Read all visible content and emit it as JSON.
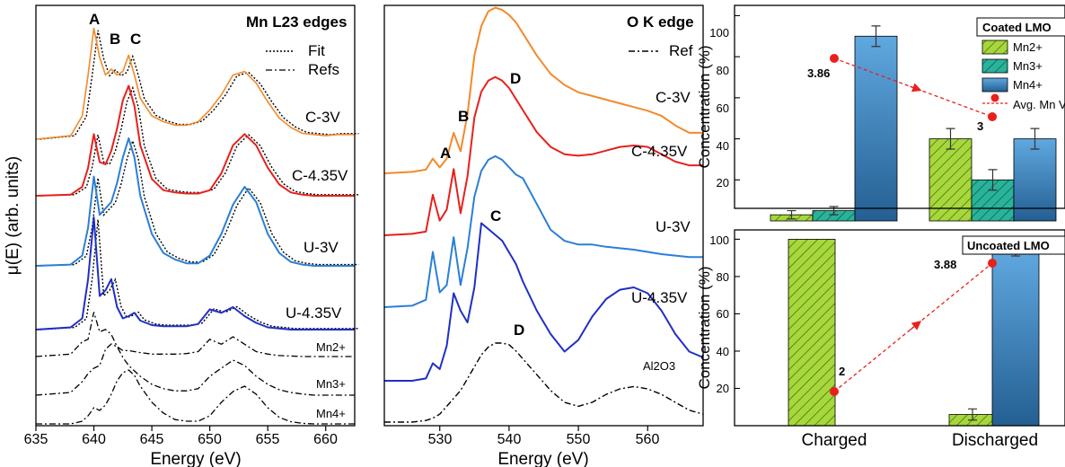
{
  "chart_data": [
    {
      "type": "line",
      "xlabel": "Energy (eV)",
      "ylabel": "μ(E) (arb. units)",
      "xlim": [
        635,
        662.5
      ],
      "x_ticks": [
        "635",
        "640",
        "645",
        "650",
        "655",
        "660"
      ],
      "title": "Mn L23 edges",
      "legend": {
        "position": "top-right",
        "fit": "Fit",
        "refs": "Refs"
      },
      "peak_labels": [
        "A",
        "B",
        "C"
      ],
      "colors": {
        "C-3V": "#f28a2a",
        "C-4.35V": "#e8201c",
        "U-3V": "#2a7fd6",
        "U-4.35V": "#1f2fc6",
        "fit": "#000000",
        "refs": "#000000"
      },
      "series": [
        {
          "name": "C-3V",
          "x": [
            635,
            638,
            639,
            639.5,
            640,
            640.5,
            641,
            641.5,
            642,
            642.5,
            643,
            643.5,
            644,
            645,
            646,
            647,
            648,
            649,
            650,
            651,
            652,
            653,
            654,
            655,
            656,
            657,
            658,
            659,
            660,
            661,
            662.5
          ],
          "y": [
            0.0,
            0.03,
            0.2,
            0.55,
            0.95,
            0.7,
            0.55,
            0.6,
            0.55,
            0.58,
            0.72,
            0.55,
            0.35,
            0.2,
            0.15,
            0.12,
            0.12,
            0.15,
            0.25,
            0.38,
            0.55,
            0.58,
            0.48,
            0.32,
            0.18,
            0.1,
            0.05,
            0.04,
            0.03,
            0.04,
            0.04
          ]
        },
        {
          "name": "C-4.35V",
          "x": [
            635,
            638,
            639,
            639.5,
            640,
            640.5,
            641,
            641.5,
            642,
            642.5,
            643,
            643.5,
            644,
            645,
            646,
            647,
            648,
            649,
            650,
            651,
            652,
            653,
            654,
            655,
            656,
            657,
            658,
            659,
            660,
            661,
            662.5
          ],
          "y": [
            0.0,
            0.01,
            0.08,
            0.25,
            0.55,
            0.3,
            0.28,
            0.4,
            0.6,
            0.85,
            0.98,
            0.8,
            0.45,
            0.15,
            0.05,
            0.03,
            0.02,
            0.02,
            0.05,
            0.2,
            0.45,
            0.55,
            0.45,
            0.25,
            0.1,
            0.03,
            0.01,
            0.0,
            0.0,
            0.0,
            0.0
          ]
        },
        {
          "name": "U-3V",
          "x": [
            635,
            638,
            639,
            639.5,
            640,
            640.5,
            641,
            641.5,
            642,
            642.5,
            643,
            643.5,
            644,
            645,
            646,
            647,
            648,
            649,
            650,
            651,
            652,
            653,
            654,
            655,
            656,
            657,
            658,
            659,
            660,
            661,
            662.5
          ],
          "y": [
            0.0,
            0.01,
            0.08,
            0.3,
            0.7,
            0.4,
            0.45,
            0.5,
            0.65,
            0.85,
            1.0,
            0.85,
            0.55,
            0.25,
            0.1,
            0.05,
            0.02,
            0.02,
            0.08,
            0.25,
            0.48,
            0.62,
            0.5,
            0.25,
            0.1,
            0.03,
            0.01,
            0.0,
            0.0,
            0.0,
            0.0
          ]
        },
        {
          "name": "U-4.35V",
          "x": [
            635,
            638,
            639,
            639.5,
            640,
            640.5,
            641,
            641.5,
            642,
            642.5,
            643,
            643.5,
            644,
            645,
            646,
            647,
            648,
            649,
            650,
            651,
            652,
            653,
            654,
            655,
            656,
            657,
            658,
            659,
            660,
            661,
            662.5
          ],
          "y": [
            0.0,
            0.02,
            0.1,
            0.45,
            1.0,
            0.3,
            0.35,
            0.45,
            0.2,
            0.1,
            0.12,
            0.15,
            0.08,
            0.04,
            0.03,
            0.03,
            0.03,
            0.05,
            0.18,
            0.15,
            0.2,
            0.12,
            0.06,
            0.02,
            0.01,
            0.0,
            0.0,
            0.0,
            0.0,
            0.0,
            0.0
          ]
        },
        {
          "name": "Mn2+",
          "x": [
            635,
            638,
            639,
            639.5,
            640,
            640.5,
            641,
            641.5,
            642,
            642.5,
            643,
            643.5,
            644,
            645,
            646,
            647,
            648,
            649,
            650,
            651,
            652,
            653,
            654,
            655,
            656,
            657,
            658,
            659,
            660,
            661,
            662.5
          ],
          "y": [
            0.0,
            0.05,
            0.3,
            0.35,
            0.9,
            0.5,
            0.55,
            0.45,
            0.2,
            0.12,
            0.12,
            0.1,
            0.08,
            0.05,
            0.05,
            0.05,
            0.06,
            0.1,
            0.35,
            0.25,
            0.4,
            0.25,
            0.1,
            0.05,
            0.02,
            0.01,
            0.0,
            0.0,
            0.0,
            0.0,
            0.0
          ]
        },
        {
          "name": "Mn3+",
          "x": [
            635,
            638,
            639,
            639.5,
            640,
            640.5,
            641,
            641.5,
            642,
            642.5,
            643,
            643.5,
            644,
            645,
            646,
            647,
            648,
            649,
            650,
            651,
            652,
            653,
            654,
            655,
            656,
            657,
            658,
            659,
            660,
            661,
            662.5
          ],
          "y": [
            0.0,
            0.05,
            0.25,
            0.4,
            0.5,
            0.55,
            0.85,
            0.95,
            0.9,
            0.7,
            0.55,
            0.45,
            0.35,
            0.2,
            0.12,
            0.08,
            0.08,
            0.12,
            0.35,
            0.5,
            0.65,
            0.55,
            0.35,
            0.2,
            0.1,
            0.05,
            0.02,
            0.0,
            0.0,
            0.0,
            0.0
          ]
        },
        {
          "name": "Mn4+",
          "x": [
            635,
            638,
            639,
            639.5,
            640,
            640.5,
            641,
            641.5,
            642,
            642.5,
            643,
            643.5,
            644,
            645,
            646,
            647,
            648,
            649,
            650,
            651,
            652,
            653,
            654,
            655,
            656,
            657,
            658,
            659,
            660,
            661,
            662.5
          ],
          "y": [
            0.0,
            0.0,
            0.05,
            0.15,
            0.3,
            0.25,
            0.35,
            0.55,
            0.8,
            0.95,
            1.0,
            0.9,
            0.7,
            0.4,
            0.2,
            0.08,
            0.05,
            0.05,
            0.15,
            0.4,
            0.6,
            0.7,
            0.55,
            0.3,
            0.12,
            0.04,
            0.01,
            0.0,
            0.0,
            0.0,
            0.0
          ]
        }
      ],
      "trace_labels": [
        "C-3V",
        "C-4.35V",
        "U-3V",
        "U-4.35V",
        "Mn2+",
        "Mn3+",
        "Mn4+"
      ]
    },
    {
      "type": "line",
      "xlabel": "Energy (eV)",
      "xlim": [
        522,
        568
      ],
      "x_ticks": [
        "530",
        "540",
        "550",
        "560"
      ],
      "title": "O K edge",
      "legend": {
        "position": "top-right",
        "ref": "Ref"
      },
      "peak_labels": [
        "A",
        "B",
        "C",
        "D",
        "D"
      ],
      "colors": {
        "C-3V": "#f28a2a",
        "C-4.35V": "#e8201c",
        "U-3V": "#2a7fd6",
        "U-4.35V": "#1f2fc6",
        "ref": "#000000"
      },
      "series": [
        {
          "name": "C-3V",
          "x": [
            522,
            526,
            528,
            529,
            530,
            531,
            532,
            533,
            534,
            535,
            536,
            537,
            538,
            539,
            540,
            541,
            542,
            544,
            546,
            548,
            550,
            552,
            554,
            556,
            558,
            560,
            562,
            564,
            566,
            568
          ],
          "y": [
            0.0,
            0.02,
            0.05,
            0.2,
            0.08,
            0.2,
            0.55,
            0.3,
            0.8,
            1.6,
            2.0,
            2.2,
            2.25,
            2.22,
            2.15,
            2.05,
            1.9,
            1.6,
            1.35,
            1.2,
            1.1,
            1.05,
            1.0,
            0.95,
            0.9,
            0.85,
            0.78,
            0.65,
            0.55,
            0.55
          ]
        },
        {
          "name": "C-4.35V",
          "x": [
            522,
            526,
            528,
            529,
            530,
            531,
            532,
            533,
            534,
            535,
            536,
            537,
            538,
            539,
            540,
            541,
            542,
            544,
            546,
            548,
            550,
            552,
            554,
            556,
            558,
            560,
            562,
            564,
            566,
            568
          ],
          "y": [
            0.0,
            0.02,
            0.05,
            0.55,
            0.2,
            0.35,
            0.9,
            0.3,
            0.8,
            1.6,
            1.95,
            2.1,
            2.15,
            2.1,
            2.0,
            1.85,
            1.7,
            1.4,
            1.2,
            1.1,
            1.08,
            1.1,
            1.15,
            1.2,
            1.22,
            1.2,
            1.1,
            1.0,
            0.95,
            0.95
          ]
        },
        {
          "name": "U-3V",
          "x": [
            522,
            526,
            528,
            529,
            530,
            531,
            532,
            533,
            534,
            535,
            536,
            537,
            538,
            539,
            540,
            541,
            542,
            544,
            546,
            548,
            550,
            552,
            554,
            556,
            558,
            560,
            562,
            564,
            566,
            568
          ],
          "y": [
            0.0,
            0.02,
            0.1,
            0.75,
            0.2,
            0.3,
            0.95,
            0.3,
            0.8,
            1.5,
            1.85,
            2.0,
            2.05,
            2.0,
            1.9,
            1.8,
            1.75,
            1.4,
            1.05,
            0.9,
            0.85,
            0.85,
            0.82,
            0.8,
            0.78,
            0.75,
            0.72,
            0.7,
            0.68,
            0.68
          ]
        },
        {
          "name": "U-4.35V",
          "x": [
            522,
            526,
            528,
            529,
            530,
            531,
            532,
            533,
            534,
            535,
            536,
            537,
            538,
            539,
            540,
            541,
            542,
            544,
            546,
            548,
            550,
            552,
            554,
            556,
            558,
            560,
            562,
            564,
            566,
            568
          ],
          "y": [
            0.0,
            0.0,
            0.02,
            0.15,
            0.1,
            0.3,
            0.75,
            0.6,
            0.5,
            0.8,
            1.35,
            1.3,
            1.25,
            1.2,
            1.1,
            1.0,
            0.85,
            0.6,
            0.4,
            0.25,
            0.35,
            0.55,
            0.7,
            0.78,
            0.8,
            0.75,
            0.6,
            0.4,
            0.25,
            0.2
          ]
        },
        {
          "name": "Al2O3",
          "x": [
            522,
            526,
            528,
            529,
            530,
            531,
            532,
            533,
            534,
            535,
            536,
            537,
            538,
            539,
            540,
            541,
            542,
            544,
            546,
            548,
            550,
            552,
            554,
            556,
            558,
            560,
            562,
            564,
            566,
            568
          ],
          "y": [
            0.0,
            0.0,
            0.02,
            0.05,
            0.1,
            0.2,
            0.3,
            0.4,
            0.55,
            0.7,
            0.85,
            0.95,
            1.0,
            1.0,
            0.98,
            0.9,
            0.8,
            0.6,
            0.4,
            0.25,
            0.2,
            0.25,
            0.35,
            0.42,
            0.45,
            0.42,
            0.35,
            0.25,
            0.15,
            0.1
          ]
        }
      ],
      "trace_labels": [
        "C-3V",
        "C-4.35V",
        "U-3V",
        "U-4.35V",
        "Al2O3"
      ]
    },
    {
      "type": "bar",
      "title": "Coated LMO",
      "ylabel": "Concentration (%)",
      "ylim": [
        0,
        105
      ],
      "y_ticks": [
        "20",
        "40",
        "60",
        "80",
        "100"
      ],
      "categories": [
        "Charged",
        "Discharged"
      ],
      "series": [
        {
          "name": "Mn2+",
          "values": [
            3,
            40
          ],
          "errors": [
            2,
            5
          ]
        },
        {
          "name": "Mn3+",
          "values": [
            5,
            20
          ],
          "errors": [
            2,
            5
          ]
        },
        {
          "name": "Mn4+",
          "values": [
            90,
            40
          ],
          "errors": [
            5,
            5
          ]
        }
      ],
      "valence": {
        "name": "Avg. Mn Valence",
        "values": [
          3.86,
          3
        ],
        "labels": [
          "3.86",
          "3"
        ]
      },
      "legend": {
        "position": "top-right",
        "entries": [
          "Mn2+",
          "Mn3+",
          "Mn4+",
          "Avg. Mn Valence"
        ]
      },
      "colors": {
        "Mn2+": "#a6d83b",
        "Mn3+": "#29b39a",
        "Mn4+": "#3f8fce",
        "valence": "#e8201c"
      }
    },
    {
      "type": "bar",
      "title": "Uncoated LMO",
      "xlabel": "",
      "ylabel": "Concentration (%)",
      "ylim": [
        0,
        105
      ],
      "y_ticks": [
        "20",
        "40",
        "60",
        "80",
        "100"
      ],
      "categories": [
        "Charged",
        "Discharged"
      ],
      "series": [
        {
          "name": "Mn2+",
          "values": [
            100,
            6
          ],
          "errors": [
            0,
            3
          ]
        },
        {
          "name": "Mn4+",
          "values": [
            0,
            94
          ],
          "errors": [
            0,
            3
          ]
        }
      ],
      "valence": {
        "name": "Avg. Mn Valence",
        "values": [
          2,
          3.88
        ],
        "labels": [
          "2",
          "3.88"
        ]
      },
      "colors": {
        "Mn2+": "#a6d83b",
        "Mn4+": "#3f8fce",
        "valence": "#e8201c"
      }
    }
  ]
}
